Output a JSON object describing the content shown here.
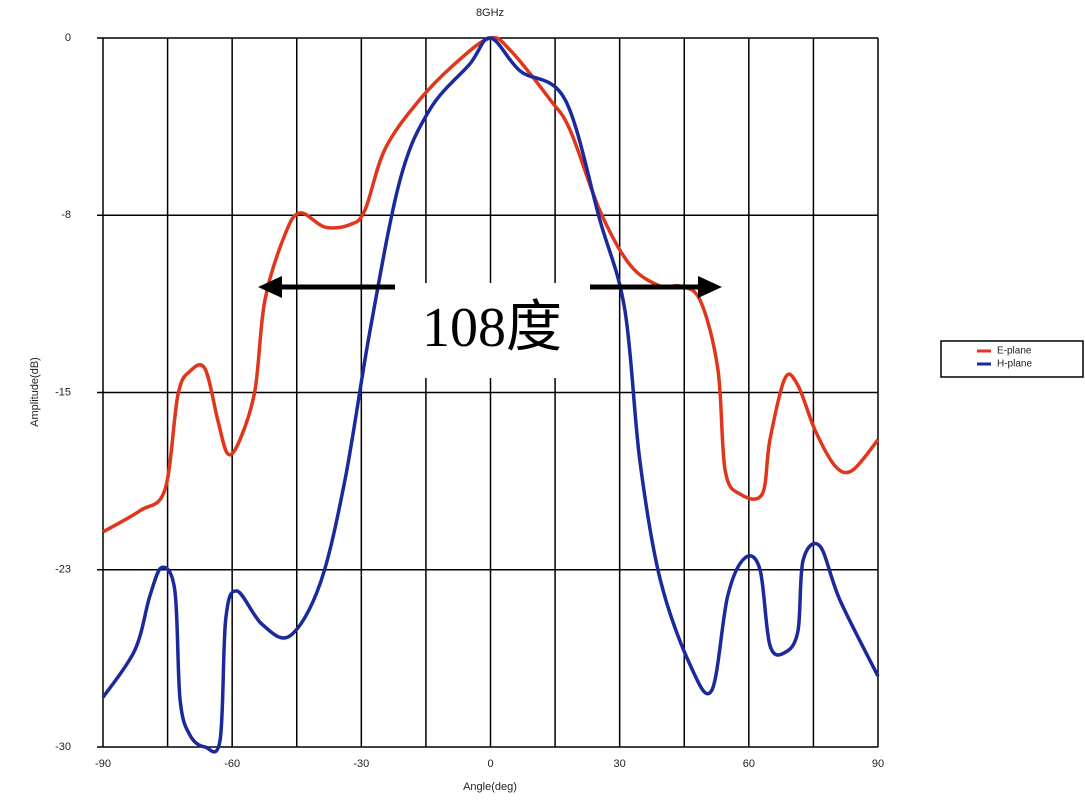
{
  "chart_data": {
    "type": "line",
    "title": "8GHz",
    "x_label": "Angle(deg)",
    "y_label": "Amplitude(dB)",
    "annotation": "108度",
    "xlim": [
      -90,
      90
    ],
    "xticks": [
      -90,
      -60,
      -30,
      0,
      30,
      60,
      90
    ],
    "xminor_ticks": [
      -75,
      -45,
      -15,
      15,
      45,
      75
    ],
    "ylim": [
      -30,
      0
    ],
    "yticks": [
      0,
      {
        "value": -7.5,
        "label": "-8"
      },
      -15,
      {
        "value": -22.5,
        "label": "-23"
      },
      -30
    ],
    "grid": true,
    "legend": "right",
    "series": [
      {
        "name": "E-plane",
        "color": "#e0361c",
        "x": [
          -90,
          -81.4,
          -75.6,
          -72.6,
          -69.8,
          -66.3,
          -63.3,
          -61.0,
          -58.2,
          -54.7,
          -52.4,
          -47.7,
          -44.2,
          -38.5,
          -32.7,
          -29.2,
          -24.5,
          -16.4,
          -7.1,
          0,
          4.5,
          13.8,
          18.5,
          25.4,
          32.4,
          39.4,
          44.0,
          48.7,
          52.8,
          54.5,
          58.0,
          63.1,
          64.9,
          68.4,
          71.4,
          75.4,
          80.0,
          84.0,
          90
        ],
        "values": [
          -20.9,
          -20.0,
          -19.1,
          -15.1,
          -14.1,
          -14.0,
          -16.2,
          -17.6,
          -17.0,
          -14.9,
          -11.1,
          -8.3,
          -7.4,
          -8.0,
          -7.9,
          -7.3,
          -4.7,
          -2.6,
          -0.9,
          0,
          -0.5,
          -2.6,
          -3.9,
          -7.3,
          -9.6,
          -10.5,
          -10.5,
          -11.1,
          -14.0,
          -18.3,
          -19.3,
          -19.3,
          -17.0,
          -14.4,
          -14.7,
          -16.6,
          -18.1,
          -18.3,
          -17.0
        ]
      },
      {
        "name": "H-plane",
        "color": "#1a2a9c",
        "x": [
          -90,
          -82.6,
          -79.1,
          -76.3,
          -73.3,
          -72.1,
          -69.8,
          -66.3,
          -62.8,
          -61.5,
          -58.9,
          -53.1,
          -46.6,
          -39.6,
          -33.8,
          -28.0,
          -21.0,
          -14.0,
          -4.8,
          0,
          6.9,
          17.3,
          25.4,
          31.2,
          34.7,
          39.4,
          46.3,
          51.4,
          55.1,
          59.1,
          62.6,
          64.9,
          68.4,
          71.4,
          72.6,
          76.5,
          81.2,
          90
        ],
        "values": [
          -27.9,
          -25.9,
          -23.6,
          -22.4,
          -23.4,
          -28.0,
          -29.5,
          -30.0,
          -29.7,
          -24.6,
          -23.4,
          -24.8,
          -25.3,
          -23.1,
          -18.7,
          -12.4,
          -6.0,
          -3.0,
          -1.1,
          0,
          -1.4,
          -2.6,
          -7.7,
          -11.5,
          -17.9,
          -22.9,
          -26.5,
          -27.6,
          -23.6,
          -22.0,
          -22.5,
          -25.7,
          -26.0,
          -25.1,
          -22.1,
          -21.5,
          -23.8,
          -27.0
        ]
      }
    ]
  }
}
